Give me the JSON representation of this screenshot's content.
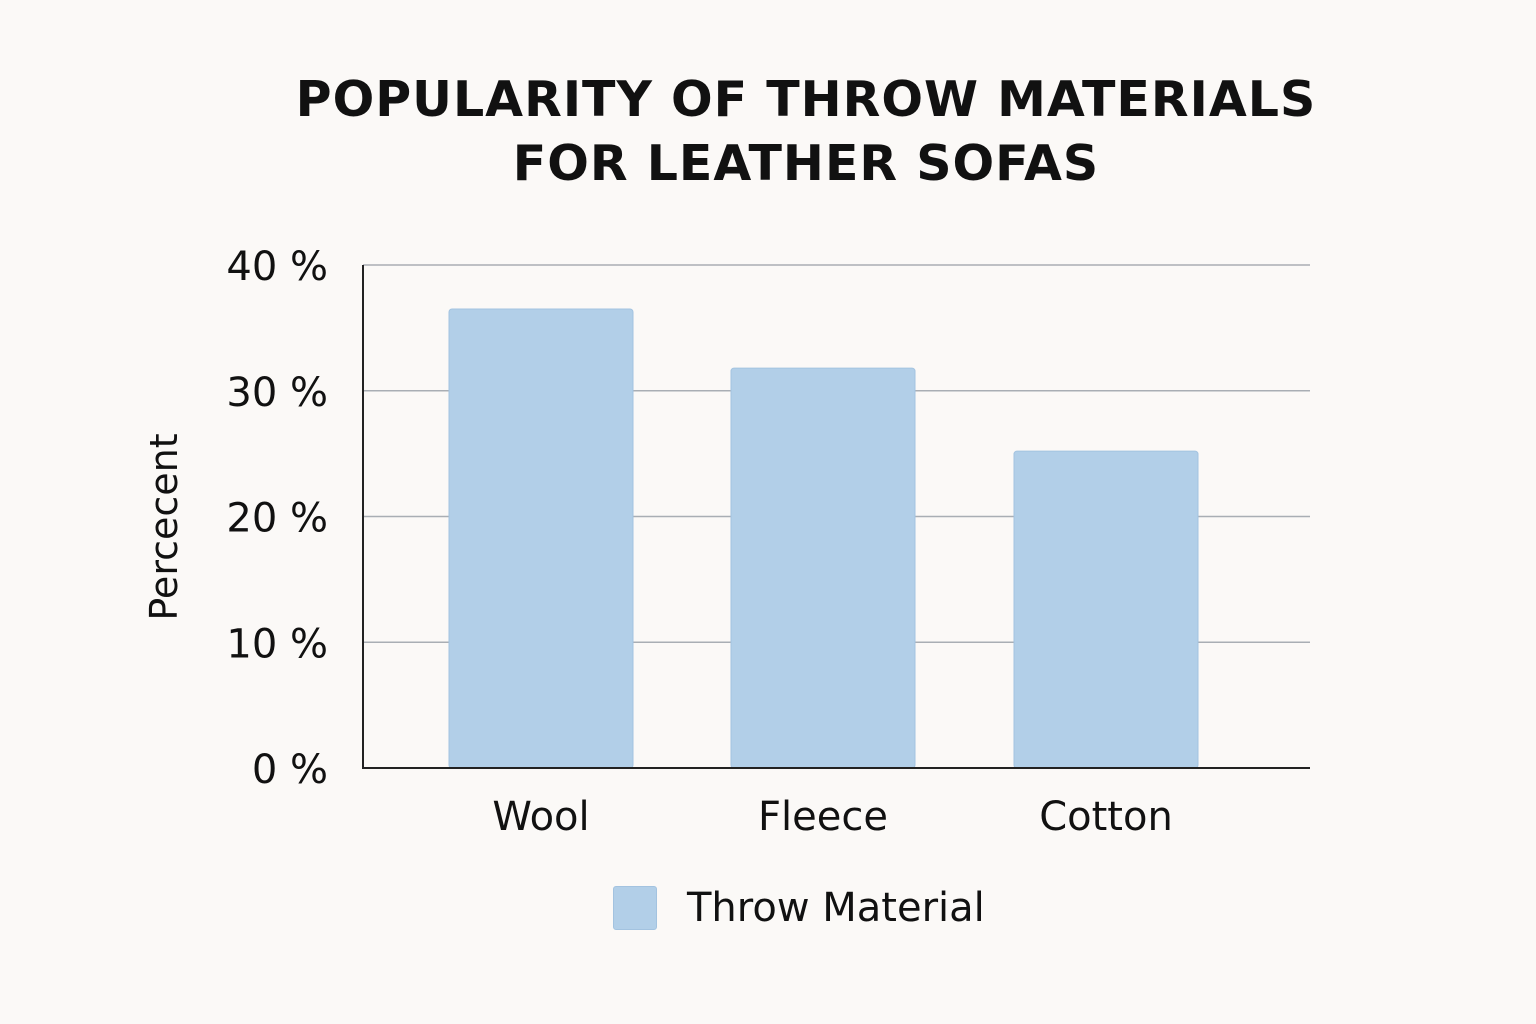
{
  "chart_data": {
    "type": "bar",
    "title_lines": [
      "POPULARITY OF THROW MATERIALS",
      "FOR LEATHER SOFAS"
    ],
    "title": "POPULARITY OF THROW MATERIALS FOR LEATHER SOFAS",
    "xlabel": "",
    "ylabel": "Percecent",
    "categories": [
      "Wool",
      "Fleece",
      "Cotton"
    ],
    "values": [
      36.5,
      31.8,
      25.2
    ],
    "series": [
      {
        "name": "Throw Material",
        "values": [
          36.5,
          31.8,
          25.2
        ]
      }
    ],
    "ylim": [
      0,
      40
    ],
    "yticks": [
      0,
      10,
      20,
      30,
      40
    ],
    "ytick_labels": [
      "0 %",
      "10 %",
      "20 %",
      "30 %",
      "40 %"
    ],
    "grid": true,
    "legend_position": "bottom-center",
    "colors": {
      "bar": "#b2cfe8",
      "bar_edge": "#a3c3e0",
      "grid": "#a9aeb4",
      "axis": "#222222",
      "background": "#fbf9f7"
    }
  }
}
